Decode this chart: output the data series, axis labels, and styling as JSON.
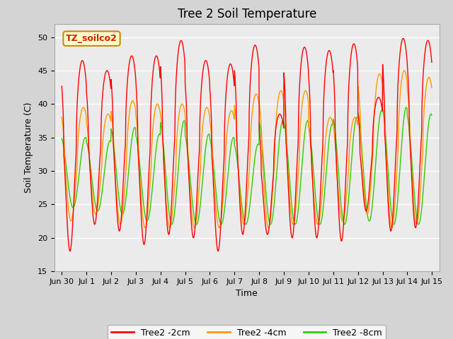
{
  "title": "Tree 2 Soil Temperature",
  "ylabel": "Soil Temperature (C)",
  "xlabel": "Time",
  "annotation": "TZ_soilco2",
  "ylim": [
    15,
    52
  ],
  "yticks": [
    15,
    20,
    25,
    30,
    35,
    40,
    45,
    50
  ],
  "xtick_labels": [
    "Jun 30",
    "Jul 1",
    "Jul 2",
    "Jul 3",
    "Jul 4",
    "Jul 5",
    "Jul 6",
    "Jul 7",
    "Jul 8",
    "Jul 9",
    "Jul 10",
    "Jul 11",
    "Jul 12",
    "Jul 13",
    "Jul 14",
    "Jul 15"
  ],
  "colors": {
    "2cm": "#ff0000",
    "4cm": "#ff9900",
    "8cm": "#33cc00"
  },
  "legend_labels": [
    "Tree2 -2cm",
    "Tree2 -4cm",
    "Tree2 -8cm"
  ],
  "fig_bg": "#d4d4d4",
  "plot_bg": "#ebebeb",
  "grid_color": "#ffffff",
  "title_fontsize": 12,
  "label_fontsize": 9,
  "tick_fontsize": 8,
  "annot_fontsize": 9,
  "legend_fontsize": 9,
  "phase_2cm": 0.583,
  "phase_4cm": 0.625,
  "phase_8cm": 0.708,
  "day_peaks_2cm": [
    46.5,
    45.0,
    47.2,
    47.2,
    49.5,
    46.5,
    46.0,
    48.8,
    38.5,
    48.5,
    48.0,
    49.0,
    41.0,
    49.8,
    49.5
  ],
  "day_troughs_2cm": [
    18.0,
    22.0,
    21.0,
    19.0,
    20.5,
    20.0,
    18.0,
    20.5,
    20.5,
    20.0,
    20.0,
    19.5,
    24.0,
    21.0,
    21.5
  ],
  "day_peaks_4cm": [
    39.5,
    38.5,
    40.5,
    40.0,
    40.0,
    39.5,
    39.0,
    41.5,
    42.0,
    42.0,
    38.0,
    38.0,
    44.5,
    45.0,
    44.0
  ],
  "day_troughs_4cm": [
    22.5,
    23.5,
    22.0,
    21.5,
    21.5,
    21.5,
    21.5,
    22.0,
    21.5,
    22.0,
    22.0,
    22.5,
    23.5,
    21.5,
    22.0
  ],
  "day_peaks_8cm": [
    35.0,
    34.5,
    36.5,
    35.5,
    37.5,
    35.5,
    35.0,
    34.0,
    37.5,
    37.5,
    37.0,
    38.0,
    39.0,
    39.5,
    38.5
  ],
  "day_troughs_8cm": [
    24.5,
    24.0,
    23.5,
    22.5,
    22.0,
    22.0,
    22.0,
    22.0,
    22.0,
    22.0,
    22.0,
    22.0,
    22.5,
    22.0,
    22.0
  ]
}
